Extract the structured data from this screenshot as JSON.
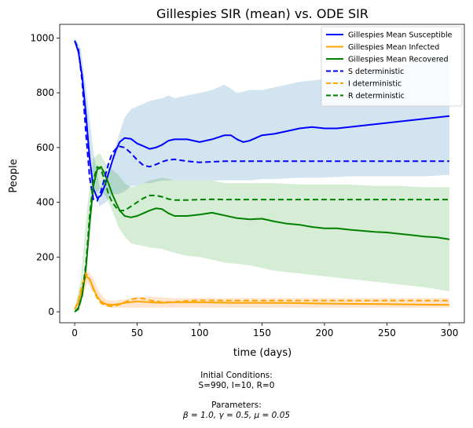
{
  "chart_data": {
    "type": "line",
    "title": "Gillespies SIR (mean) vs. ODE SIR",
    "xlabel": "time (days)",
    "ylabel": "People",
    "xlim": [
      -12,
      312
    ],
    "ylim": [
      -40,
      1050
    ],
    "xticks": [
      0,
      50,
      100,
      150,
      200,
      250,
      300
    ],
    "yticks": [
      0,
      200,
      400,
      600,
      800,
      1000
    ],
    "grid": false,
    "legend_position": "upper right",
    "bands": [
      {
        "series": "Gillespies Mean Susceptible",
        "color": "#1f77b4",
        "x": [
          0,
          5,
          10,
          15,
          20,
          25,
          30,
          35,
          40,
          45,
          50,
          55,
          60,
          65,
          70,
          75,
          80,
          90,
          100,
          110,
          120,
          130,
          140,
          150,
          160,
          180,
          200,
          220,
          240,
          260,
          280,
          300
        ],
        "upper": [
          1000,
          960,
          780,
          580,
          455,
          470,
          560,
          640,
          710,
          740,
          750,
          760,
          770,
          775,
          780,
          790,
          780,
          790,
          800,
          810,
          830,
          800,
          810,
          810,
          820,
          840,
          850,
          870,
          880,
          900,
          920,
          930
        ],
        "lower": [
          985,
          900,
          660,
          470,
          385,
          400,
          430,
          430,
          440,
          460,
          460,
          470,
          470,
          475,
          480,
          480,
          480,
          480,
          480,
          480,
          480,
          480,
          480,
          485,
          485,
          490,
          490,
          495,
          495,
          495,
          495,
          500
        ]
      },
      {
        "series": "Gillespies Mean Recovered",
        "color": "#2ca02c",
        "x": [
          0,
          5,
          10,
          15,
          20,
          25,
          30,
          35,
          40,
          45,
          50,
          55,
          60,
          70,
          80,
          90,
          100,
          110,
          120,
          130,
          140,
          150,
          160,
          180,
          200,
          220,
          240,
          260,
          280,
          300
        ],
        "upper": [
          5,
          120,
          380,
          560,
          580,
          540,
          520,
          500,
          470,
          455,
          460,
          470,
          480,
          490,
          480,
          480,
          480,
          480,
          470,
          470,
          470,
          470,
          470,
          465,
          465,
          465,
          460,
          460,
          455,
          455
        ],
        "lower": [
          0,
          70,
          290,
          420,
          450,
          420,
          370,
          310,
          275,
          250,
          245,
          240,
          235,
          230,
          215,
          205,
          200,
          190,
          180,
          175,
          170,
          160,
          150,
          140,
          130,
          120,
          110,
          100,
          90,
          75
        ]
      },
      {
        "series": "Gillespies Mean Infected",
        "color": "#ff7f0e",
        "x": [
          0,
          5,
          10,
          15,
          20,
          25,
          30,
          40,
          50,
          60,
          80,
          100,
          150,
          200,
          250,
          300
        ],
        "upper": [
          15,
          90,
          155,
          120,
          70,
          45,
          40,
          45,
          55,
          55,
          50,
          50,
          50,
          50,
          50,
          50
        ],
        "lower": [
          5,
          40,
          105,
          75,
          40,
          20,
          15,
          15,
          15,
          15,
          15,
          15,
          15,
          15,
          15,
          15
        ]
      }
    ],
    "series": [
      {
        "name": "Gillespies Mean Susceptible",
        "color": "#0000ff",
        "style": "solid",
        "x": [
          0,
          3,
          6,
          9,
          12,
          15,
          18,
          21,
          24,
          27,
          30,
          33,
          36,
          40,
          45,
          50,
          55,
          60,
          65,
          70,
          75,
          80,
          90,
          100,
          110,
          120,
          125,
          130,
          135,
          140,
          150,
          160,
          170,
          180,
          190,
          200,
          210,
          220,
          230,
          240,
          250,
          260,
          270,
          280,
          290,
          300
        ],
        "y": [
          990,
          950,
          860,
          720,
          560,
          450,
          415,
          425,
          460,
          505,
          550,
          590,
          620,
          635,
          632,
          615,
          605,
          595,
          600,
          610,
          625,
          630,
          630,
          620,
          630,
          645,
          645,
          630,
          620,
          625,
          645,
          650,
          660,
          670,
          675,
          670,
          670,
          675,
          680,
          685,
          690,
          695,
          700,
          705,
          710,
          715
        ]
      },
      {
        "name": "Gillespies Mean Infected",
        "color": "#ffa500",
        "style": "solid",
        "x": [
          0,
          3,
          6,
          9,
          12,
          15,
          18,
          21,
          25,
          30,
          35,
          40,
          50,
          60,
          70,
          80,
          100,
          125,
          150,
          175,
          200,
          250,
          300
        ],
        "y": [
          10,
          35,
          85,
          130,
          120,
          85,
          55,
          38,
          28,
          25,
          28,
          33,
          38,
          35,
          33,
          35,
          35,
          33,
          33,
          32,
          30,
          28,
          25
        ]
      },
      {
        "name": "Gillespies Mean Recovered",
        "color": "#008000",
        "style": "solid",
        "x": [
          0,
          3,
          6,
          9,
          12,
          15,
          18,
          21,
          24,
          27,
          30,
          33,
          36,
          40,
          45,
          50,
          55,
          60,
          65,
          70,
          75,
          80,
          90,
          100,
          110,
          120,
          130,
          140,
          150,
          160,
          170,
          180,
          190,
          200,
          210,
          220,
          230,
          240,
          250,
          260,
          270,
          280,
          290,
          300
        ],
        "y": [
          0,
          15,
          60,
          160,
          320,
          460,
          520,
          530,
          505,
          470,
          430,
          400,
          370,
          350,
          345,
          350,
          360,
          370,
          378,
          375,
          360,
          350,
          350,
          355,
          362,
          352,
          342,
          338,
          340,
          330,
          322,
          318,
          310,
          305,
          305,
          300,
          296,
          292,
          290,
          285,
          280,
          275,
          272,
          265
        ]
      },
      {
        "name": "S deterministic",
        "color": "#0000ff",
        "style": "dashed",
        "x": [
          0,
          3,
          6,
          9,
          12,
          15,
          18,
          21,
          24,
          27,
          30,
          35,
          40,
          45,
          50,
          55,
          60,
          65,
          70,
          75,
          80,
          90,
          100,
          110,
          120,
          140,
          160,
          200,
          250,
          300
        ],
        "y": [
          990,
          960,
          840,
          650,
          490,
          410,
          405,
          440,
          490,
          540,
          580,
          605,
          600,
          580,
          555,
          535,
          530,
          538,
          548,
          555,
          557,
          550,
          546,
          548,
          550,
          550,
          550,
          550,
          550,
          550
        ]
      },
      {
        "name": "I deterministic",
        "color": "#ffa500",
        "style": "dashed",
        "x": [
          0,
          3,
          6,
          9,
          12,
          15,
          18,
          21,
          25,
          30,
          35,
          40,
          45,
          50,
          55,
          60,
          70,
          80,
          90,
          100,
          125,
          150,
          200,
          250,
          300
        ],
        "y": [
          10,
          40,
          100,
          140,
          120,
          80,
          50,
          32,
          22,
          20,
          25,
          35,
          45,
          50,
          48,
          42,
          35,
          36,
          40,
          42,
          41,
          41,
          41,
          41,
          41
        ]
      },
      {
        "name": "R deterministic",
        "color": "#008000",
        "style": "dashed",
        "x": [
          0,
          3,
          6,
          9,
          12,
          15,
          18,
          21,
          24,
          27,
          30,
          35,
          40,
          45,
          50,
          55,
          60,
          65,
          70,
          75,
          80,
          90,
          100,
          110,
          120,
          140,
          160,
          200,
          250,
          300
        ],
        "y": [
          0,
          10,
          60,
          180,
          350,
          480,
          530,
          520,
          480,
          430,
          400,
          370,
          370,
          385,
          400,
          415,
          425,
          425,
          420,
          412,
          408,
          408,
          410,
          411,
          410,
          410,
          410,
          410,
          410,
          410
        ]
      }
    ]
  },
  "captions": {
    "initial_heading": "Initial Conditions:",
    "initial_values": "S=990, I=10, R=0",
    "parameters_heading": "Parameters:",
    "parameters_values": "β = 1.0, γ = 0.5, μ = 0.05"
  }
}
